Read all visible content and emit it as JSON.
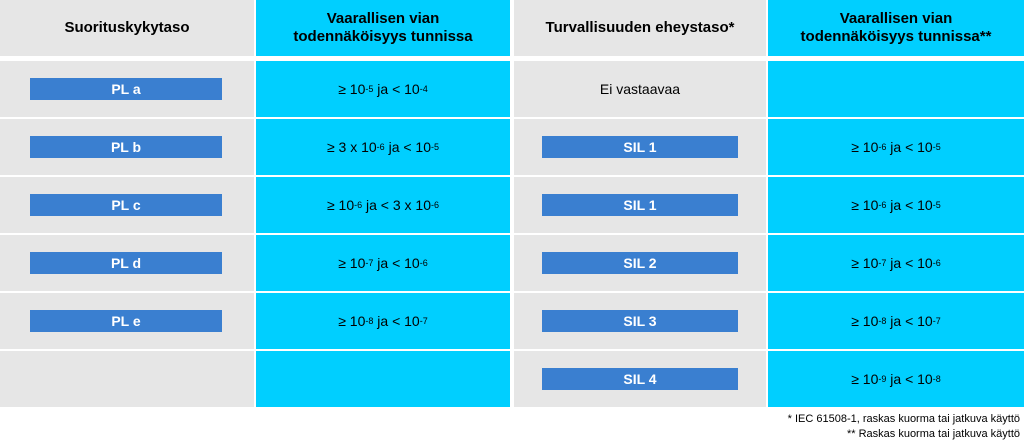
{
  "headers": {
    "col1": "Suorituskykytaso",
    "col2": "Vaarallisen vian todennäköisyys tunnissa",
    "col3": "Turvallisuuden eheystaso*",
    "col4": "Vaarallisen vian todennäköisyys tunnissa**"
  },
  "rows": [
    {
      "pl": "PL a",
      "pl_prob": {
        "pre": "≥ 10",
        "e1": "-5",
        "mid": " ja < 10",
        "e2": "-4"
      },
      "sil": "Ei vastaavaa",
      "sil_is_badge": false,
      "sil_prob": null
    },
    {
      "pl": "PL b",
      "pl_prob": {
        "pre": "≥ 3 x 10",
        "e1": "-6",
        "mid": " ja < 10",
        "e2": "-5"
      },
      "sil": "SIL 1",
      "sil_is_badge": true,
      "sil_prob": {
        "pre": "≥ 10",
        "e1": "-6",
        "mid": " ja < 10",
        "e2": "-5"
      }
    },
    {
      "pl": "PL c",
      "pl_prob": {
        "pre": "≥ 10",
        "e1": "-6",
        "mid": " ja < 3 x 10",
        "e2": "-6"
      },
      "sil": "SIL 1",
      "sil_is_badge": true,
      "sil_prob": {
        "pre": "≥ 10",
        "e1": "-6",
        "mid": " ja < 10",
        "e2": "-5"
      }
    },
    {
      "pl": "PL d",
      "pl_prob": {
        "pre": "≥ 10",
        "e1": "-7",
        "mid": " ja < 10",
        "e2": "-6"
      },
      "sil": "SIL 2",
      "sil_is_badge": true,
      "sil_prob": {
        "pre": "≥ 10",
        "e1": "-7",
        "mid": " ja < 10",
        "e2": "-6"
      }
    },
    {
      "pl": "PL e",
      "pl_prob": {
        "pre": "≥ 10",
        "e1": "-8",
        "mid": " ja < 10",
        "e2": "-7"
      },
      "sil": "SIL 3",
      "sil_is_badge": true,
      "sil_prob": {
        "pre": "≥ 10",
        "e1": "-8",
        "mid": " ja < 10",
        "e2": "-7"
      }
    },
    {
      "pl": null,
      "pl_prob": null,
      "sil": "SIL 4",
      "sil_is_badge": true,
      "sil_prob": {
        "pre": "≥ 10",
        "e1": "-9",
        "mid": " ja < 10",
        "e2": "-8"
      }
    }
  ],
  "footnotes": [
    "* IEC 61508-1, raskas kuorma tai jatkuva käyttö",
    "** Raskas kuorma tai jatkuva käyttö"
  ],
  "colors": {
    "gray": "#e6e6e6",
    "cyan": "#00cfff",
    "badge": "#3a7fd0"
  }
}
